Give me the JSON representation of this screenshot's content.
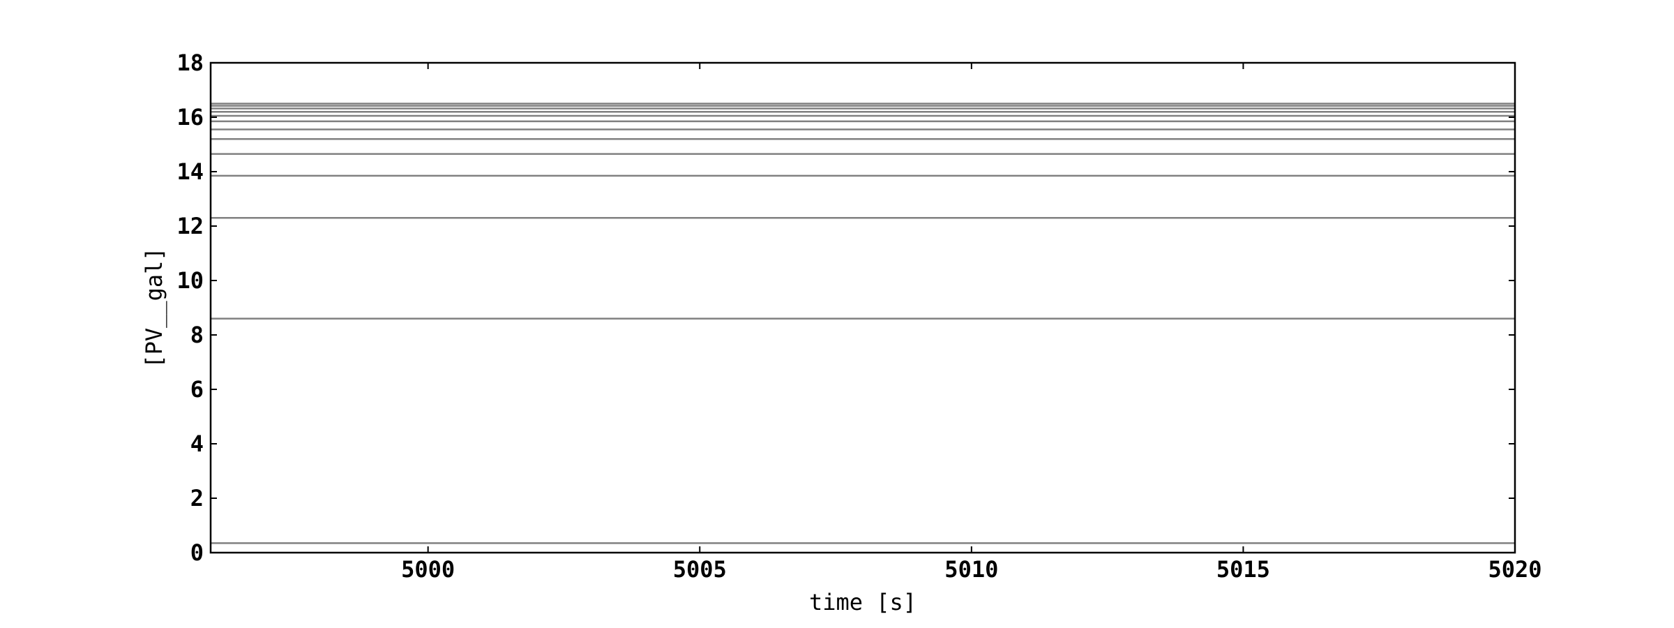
{
  "chart_data": {
    "type": "line",
    "title": "",
    "xlabel": "time [s]",
    "ylabel": "[PV__gal]",
    "xlim": [
      4996,
      5020
    ],
    "ylim": [
      0,
      18
    ],
    "xticks": [
      5000,
      5005,
      5010,
      5015,
      5020
    ],
    "xtick_labels": [
      "5000",
      "5005",
      "5010",
      "5015",
      "5020"
    ],
    "yticks": [
      0,
      2,
      4,
      6,
      8,
      10,
      12,
      14,
      16,
      18
    ],
    "ytick_labels": [
      "0",
      "2",
      "4",
      "6",
      "8",
      "10",
      "12",
      "14",
      "16",
      "18"
    ],
    "grid": false,
    "legend": "none",
    "line_color": "#808080",
    "x": [
      4996,
      5020
    ],
    "series": [
      {
        "values": [
          0.35,
          0.35
        ]
      },
      {
        "values": [
          8.6,
          8.6
        ]
      },
      {
        "values": [
          12.3,
          12.3
        ]
      },
      {
        "values": [
          13.85,
          13.85
        ]
      },
      {
        "values": [
          14.65,
          14.65
        ]
      },
      {
        "values": [
          15.2,
          15.2
        ]
      },
      {
        "values": [
          15.55,
          15.55
        ]
      },
      {
        "values": [
          15.85,
          15.85
        ]
      },
      {
        "values": [
          16.05,
          16.05
        ]
      },
      {
        "values": [
          16.2,
          16.2
        ]
      },
      {
        "values": [
          16.32,
          16.32
        ]
      },
      {
        "values": [
          16.42,
          16.42
        ]
      },
      {
        "values": [
          16.5,
          16.5
        ]
      }
    ]
  }
}
